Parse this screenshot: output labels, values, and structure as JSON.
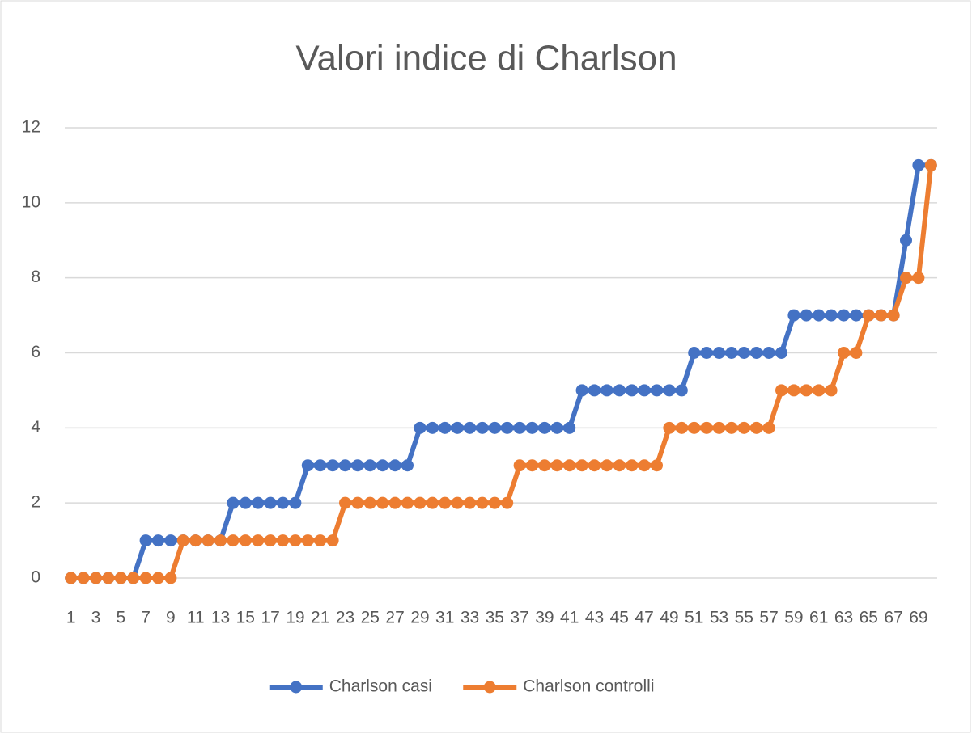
{
  "chart_data": {
    "type": "line",
    "title": "Valori indice di Charlson",
    "categories": [
      1,
      null,
      3,
      null,
      5,
      null,
      7,
      null,
      9,
      null,
      11,
      null,
      13,
      null,
      15,
      null,
      17,
      null,
      19,
      null,
      21,
      null,
      23,
      null,
      25,
      null,
      27,
      null,
      29,
      null,
      31,
      null,
      33,
      null,
      35,
      null,
      37,
      null,
      39,
      null,
      41,
      null,
      43,
      null,
      45,
      null,
      47,
      null,
      49,
      null,
      51,
      null,
      53,
      null,
      55,
      null,
      57,
      null,
      59,
      null,
      61,
      null,
      63,
      null,
      65,
      null,
      67,
      null,
      69,
      null
    ],
    "series": [
      {
        "name": "Charlson casi",
        "color": "#4472c4",
        "values": [
          0,
          0,
          0,
          0,
          0,
          0,
          1,
          1,
          1,
          1,
          1,
          1,
          1,
          2,
          2,
          2,
          2,
          2,
          2,
          3,
          3,
          3,
          3,
          3,
          3,
          3,
          3,
          3,
          4,
          4,
          4,
          4,
          4,
          4,
          4,
          4,
          4,
          4,
          4,
          4,
          4,
          5,
          5,
          5,
          5,
          5,
          5,
          5,
          5,
          5,
          6,
          6,
          6,
          6,
          6,
          6,
          6,
          6,
          7,
          7,
          7,
          7,
          7,
          7,
          7,
          7,
          7,
          9,
          11,
          11
        ]
      },
      {
        "name": "Charlson controlli",
        "color": "#ed7d31",
        "values": [
          0,
          0,
          0,
          0,
          0,
          0,
          0,
          0,
          0,
          1,
          1,
          1,
          1,
          1,
          1,
          1,
          1,
          1,
          1,
          1,
          1,
          1,
          2,
          2,
          2,
          2,
          2,
          2,
          2,
          2,
          2,
          2,
          2,
          2,
          2,
          2,
          3,
          3,
          3,
          3,
          3,
          3,
          3,
          3,
          3,
          3,
          3,
          3,
          4,
          4,
          4,
          4,
          4,
          4,
          4,
          4,
          4,
          5,
          5,
          5,
          5,
          5,
          6,
          6,
          7,
          7,
          7,
          8,
          8,
          11
        ]
      }
    ],
    "ylim": [
      0,
      12
    ],
    "yticks": [
      0,
      2,
      4,
      6,
      8,
      10,
      12
    ],
    "grid": true,
    "legend": "bottom"
  }
}
